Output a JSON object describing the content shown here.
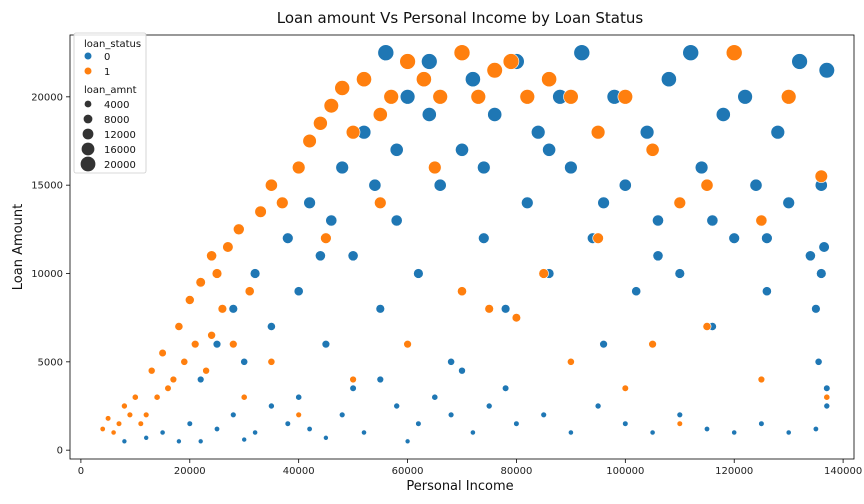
{
  "chart_data": {
    "type": "scatter",
    "title": "Loan amount Vs Personal Income by Loan Status",
    "xlabel": "Personal Income",
    "ylabel": "Loan Amount",
    "xlim": [
      -2000,
      142000
    ],
    "ylim": [
      -500,
      23500
    ],
    "x_ticks": [
      0,
      20000,
      40000,
      60000,
      80000,
      100000,
      120000,
      140000
    ],
    "x_tick_labels": [
      "0",
      "20000",
      "40000",
      "60000",
      "80000",
      "100000",
      "120000",
      "140000"
    ],
    "y_ticks": [
      0,
      5000,
      10000,
      15000,
      20000
    ],
    "y_tick_labels": [
      "0",
      "5000",
      "10000",
      "15000",
      "20000"
    ],
    "grid": false,
    "legend": {
      "placement": "top-left",
      "hue_title": "loan_status",
      "hue_entries": [
        {
          "label": "0",
          "color": "#1f77b4"
        },
        {
          "label": "1",
          "color": "#ff7f0e"
        }
      ],
      "size_title": "loan_amnt",
      "size_entries": [
        {
          "label": "4000",
          "value": 4000
        },
        {
          "label": "8000",
          "value": 8000
        },
        {
          "label": "12000",
          "value": 12000
        },
        {
          "label": "16000",
          "value": 16000
        },
        {
          "label": "20000",
          "value": 20000
        }
      ]
    },
    "series": [
      {
        "name": "0",
        "color": "#1f77b4",
        "points": [
          [
            8000,
            500
          ],
          [
            12000,
            700
          ],
          [
            15000,
            1000
          ],
          [
            18000,
            500
          ],
          [
            22000,
            500
          ],
          [
            30000,
            600
          ],
          [
            45000,
            700
          ],
          [
            60000,
            500
          ],
          [
            20000,
            1500
          ],
          [
            25000,
            1200
          ],
          [
            28000,
            2000
          ],
          [
            32000,
            1000
          ],
          [
            35000,
            2500
          ],
          [
            38000,
            1500
          ],
          [
            40000,
            3000
          ],
          [
            42000,
            1200
          ],
          [
            48000,
            2000
          ],
          [
            50000,
            3500
          ],
          [
            52000,
            1000
          ],
          [
            55000,
            4000
          ],
          [
            58000,
            2500
          ],
          [
            62000,
            1500
          ],
          [
            65000,
            3000
          ],
          [
            68000,
            2000
          ],
          [
            70000,
            4500
          ],
          [
            72000,
            1000
          ],
          [
            75000,
            2500
          ],
          [
            78000,
            3500
          ],
          [
            80000,
            1500
          ],
          [
            85000,
            2000
          ],
          [
            90000,
            1000
          ],
          [
            95000,
            2500
          ],
          [
            100000,
            1500
          ],
          [
            105000,
            1000
          ],
          [
            110000,
            2000
          ],
          [
            115000,
            1200
          ],
          [
            120000,
            1000
          ],
          [
            125000,
            1500
          ],
          [
            130000,
            1000
          ],
          [
            135000,
            1200
          ],
          [
            137000,
            2500
          ],
          [
            22000,
            4000
          ],
          [
            25000,
            6000
          ],
          [
            28000,
            8000
          ],
          [
            30000,
            5000
          ],
          [
            32000,
            10000
          ],
          [
            35000,
            7000
          ],
          [
            38000,
            12000
          ],
          [
            40000,
            9000
          ],
          [
            42000,
            14000
          ],
          [
            45000,
            6000
          ],
          [
            48000,
            16000
          ],
          [
            50000,
            11000
          ],
          [
            52000,
            18000
          ],
          [
            55000,
            8000
          ],
          [
            56000,
            22500
          ],
          [
            58000,
            13000
          ],
          [
            60000,
            20000
          ],
          [
            62000,
            10000
          ],
          [
            64000,
            22000
          ],
          [
            66000,
            15000
          ],
          [
            68000,
            5000
          ],
          [
            70000,
            17000
          ],
          [
            72000,
            21000
          ],
          [
            74000,
            12000
          ],
          [
            76000,
            19000
          ],
          [
            78000,
            8000
          ],
          [
            80000,
            22000
          ],
          [
            82000,
            14000
          ],
          [
            84000,
            18000
          ],
          [
            86000,
            10000
          ],
          [
            88000,
            20000
          ],
          [
            90000,
            16000
          ],
          [
            92000,
            22500
          ],
          [
            94000,
            12000
          ],
          [
            96000,
            6000
          ],
          [
            98000,
            20000
          ],
          [
            100000,
            15000
          ],
          [
            102000,
            9000
          ],
          [
            104000,
            18000
          ],
          [
            106000,
            13000
          ],
          [
            108000,
            21000
          ],
          [
            110000,
            10000
          ],
          [
            112000,
            22500
          ],
          [
            114000,
            16000
          ],
          [
            116000,
            7000
          ],
          [
            118000,
            19000
          ],
          [
            120000,
            12000
          ],
          [
            122000,
            20000
          ],
          [
            124000,
            15000
          ],
          [
            126000,
            9000
          ],
          [
            128000,
            18000
          ],
          [
            130000,
            14000
          ],
          [
            132000,
            22000
          ],
          [
            134000,
            11000
          ],
          [
            135000,
            8000
          ],
          [
            136000,
            15000
          ],
          [
            137000,
            21500
          ],
          [
            136500,
            11500
          ],
          [
            136000,
            10000
          ],
          [
            135500,
            5000
          ],
          [
            137000,
            3500
          ],
          [
            44000,
            11000
          ],
          [
            46000,
            13000
          ],
          [
            54000,
            15000
          ],
          [
            58000,
            17000
          ],
          [
            64000,
            19000
          ],
          [
            74000,
            16000
          ],
          [
            86000,
            17000
          ],
          [
            96000,
            14000
          ],
          [
            106000,
            11000
          ],
          [
            116000,
            13000
          ],
          [
            126000,
            12000
          ]
        ]
      },
      {
        "name": "1",
        "color": "#ff7f0e",
        "points": [
          [
            4000,
            1200
          ],
          [
            5000,
            1800
          ],
          [
            6000,
            1000
          ],
          [
            8000,
            2500
          ],
          [
            10000,
            3000
          ],
          [
            12000,
            2000
          ],
          [
            13000,
            4500
          ],
          [
            15000,
            5500
          ],
          [
            16000,
            3500
          ],
          [
            18000,
            7000
          ],
          [
            20000,
            8500
          ],
          [
            22000,
            9500
          ],
          [
            24000,
            6500
          ],
          [
            25000,
            10000
          ],
          [
            27000,
            11500
          ],
          [
            29000,
            12500
          ],
          [
            31000,
            9000
          ],
          [
            33000,
            13500
          ],
          [
            35000,
            15000
          ],
          [
            37000,
            14000
          ],
          [
            40000,
            16000
          ],
          [
            42000,
            17500
          ],
          [
            44000,
            18500
          ],
          [
            46000,
            19500
          ],
          [
            48000,
            20500
          ],
          [
            50000,
            18000
          ],
          [
            52000,
            21000
          ],
          [
            55000,
            19000
          ],
          [
            57000,
            20000
          ],
          [
            60000,
            22000
          ],
          [
            63000,
            21000
          ],
          [
            66000,
            20000
          ],
          [
            70000,
            22500
          ],
          [
            73000,
            20000
          ],
          [
            76000,
            21500
          ],
          [
            79000,
            22000
          ],
          [
            82000,
            20000
          ],
          [
            86000,
            21000
          ],
          [
            90000,
            20000
          ],
          [
            95000,
            18000
          ],
          [
            100000,
            20000
          ],
          [
            105000,
            17000
          ],
          [
            110000,
            14000
          ],
          [
            115000,
            15000
          ],
          [
            120000,
            22500
          ],
          [
            125000,
            13000
          ],
          [
            130000,
            20000
          ],
          [
            136000,
            15500
          ],
          [
            137000,
            3000
          ],
          [
            110000,
            1500
          ],
          [
            100000,
            3500
          ],
          [
            90000,
            5000
          ],
          [
            80000,
            7500
          ],
          [
            70000,
            9000
          ],
          [
            60000,
            6000
          ],
          [
            50000,
            4000
          ],
          [
            40000,
            2000
          ],
          [
            35000,
            5000
          ],
          [
            30000,
            3000
          ],
          [
            28000,
            6000
          ],
          [
            26000,
            8000
          ],
          [
            24000,
            11000
          ],
          [
            23000,
            4500
          ],
          [
            21000,
            6000
          ],
          [
            19000,
            5000
          ],
          [
            17000,
            4000
          ],
          [
            14000,
            3000
          ],
          [
            11000,
            1500
          ],
          [
            9000,
            2000
          ],
          [
            7000,
            1500
          ],
          [
            45000,
            12000
          ],
          [
            55000,
            14000
          ],
          [
            65000,
            16000
          ],
          [
            75000,
            8000
          ],
          [
            85000,
            10000
          ],
          [
            95000,
            12000
          ],
          [
            105000,
            6000
          ],
          [
            115000,
            7000
          ],
          [
            125000,
            4000
          ]
        ]
      }
    ]
  }
}
